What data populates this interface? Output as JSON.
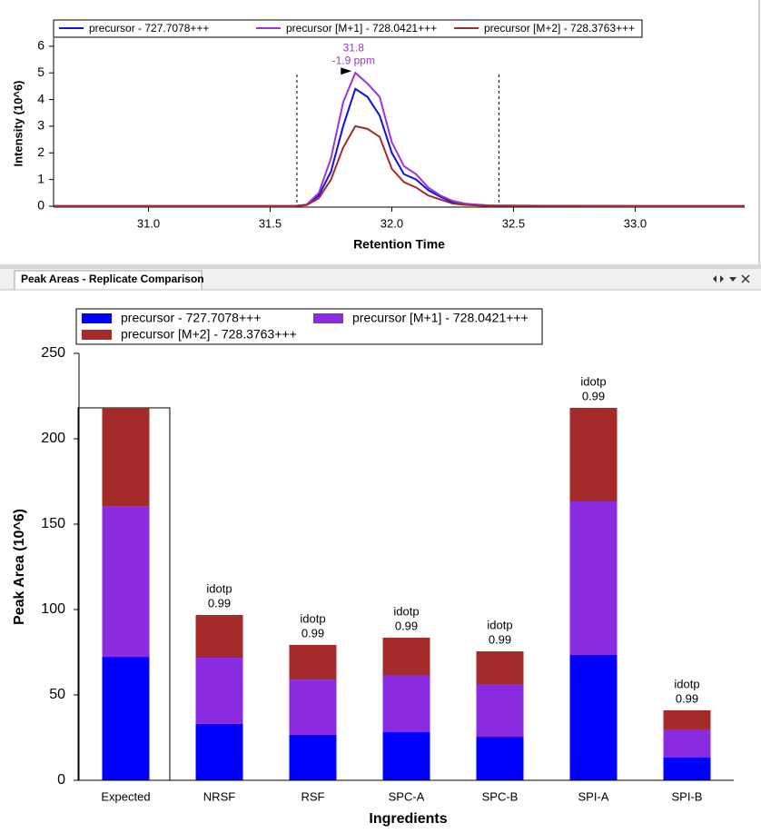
{
  "panel_tab": "Peak Areas - Replicate Comparison",
  "chart_data": [
    {
      "type": "line",
      "x_label": "Retention Time",
      "y_label": "Intensity (10^6)",
      "x": [
        30.61,
        31.0,
        31.5,
        31.6,
        31.65,
        31.7,
        31.75,
        31.8,
        31.85,
        31.9,
        31.95,
        32.0,
        32.05,
        32.1,
        32.15,
        32.2,
        32.25,
        32.3,
        32.35,
        32.4,
        32.5,
        33.0,
        33.45
      ],
      "series": [
        {
          "name": "precursor - 727.7078+++",
          "color": "#1010e0",
          "values": [
            0.01,
            0.01,
            0.01,
            0.01,
            0.05,
            0.4,
            1.3,
            3.0,
            4.4,
            4.1,
            3.4,
            2.0,
            1.2,
            1.0,
            0.6,
            0.35,
            0.15,
            0.08,
            0.05,
            0.02,
            0.02,
            0.01,
            0.01
          ]
        },
        {
          "name": "precursor [M+1] - 728.0421+++",
          "color": "#9b35d8",
          "values": [
            0.01,
            0.01,
            0.01,
            0.01,
            0.06,
            0.5,
            1.8,
            3.9,
            5.0,
            4.6,
            4.1,
            2.4,
            1.5,
            1.2,
            0.7,
            0.4,
            0.2,
            0.1,
            0.06,
            0.03,
            0.02,
            0.01,
            0.01
          ]
        },
        {
          "name": "precursor [M+2] - 728.3763+++",
          "color": "#a52a2a",
          "values": [
            0.0,
            0.0,
            0.0,
            0.0,
            0.04,
            0.3,
            1.0,
            2.2,
            3.0,
            2.9,
            2.6,
            1.4,
            0.9,
            0.7,
            0.4,
            0.25,
            0.1,
            0.05,
            0.03,
            0.01,
            0.01,
            0.0,
            0.0
          ]
        }
      ],
      "peak_annotation": {
        "retention_time": 31.8,
        "mass_error": "-1.9 ppm"
      },
      "integration_boundaries": [
        31.61,
        32.44
      ],
      "xlim": [
        30.61,
        33.45
      ],
      "ylim": [
        0,
        6.2
      ],
      "xticks": [
        {
          "value": 31,
          "label": "31.0"
        },
        31.5,
        {
          "value": 32,
          "label": "32.0"
        },
        32.5,
        {
          "value": 33,
          "label": "33.0"
        }
      ],
      "yticks": [
        0,
        1,
        2,
        3,
        4,
        5,
        6
      ]
    },
    {
      "type": "stacked_bar",
      "x_label": "Ingredients",
      "y_label": "Peak Area (10^6)",
      "categories": [
        "Expected",
        "NRSF",
        "RSF",
        "SPC-A",
        "SPC-B",
        "SPI-A",
        "SPI-B"
      ],
      "series": [
        {
          "name": "precursor - 727.7078+++",
          "color": "#0000ff",
          "values": [
            72.3,
            33.0,
            26.6,
            28.2,
            25.5,
            73.4,
            13.3
          ]
        },
        {
          "name": "precursor [M+1] - 728.0421+++",
          "color": "#8a2be2",
          "values": [
            88.3,
            38.8,
            32.4,
            33.5,
            30.4,
            89.9,
            16.5
          ]
        },
        {
          "name": "precursor [M+2] - 728.3763+++",
          "color": "#a52a2a",
          "values": [
            57.5,
            25.0,
            20.3,
            21.8,
            19.6,
            54.8,
            11.2
          ]
        }
      ],
      "annotations": [
        null,
        {
          "label": "idotp",
          "value": 0.99
        },
        {
          "label": "idotp",
          "value": 0.99
        },
        {
          "label": "idotp",
          "value": 0.99
        },
        {
          "label": "idotp",
          "value": 0.99
        },
        {
          "label": "idotp",
          "value": 0.99
        },
        {
          "label": "idotp",
          "value": 0.99
        }
      ],
      "ylim": [
        0,
        250
      ],
      "yticks": [
        0,
        50,
        100,
        150,
        200,
        250
      ]
    }
  ]
}
